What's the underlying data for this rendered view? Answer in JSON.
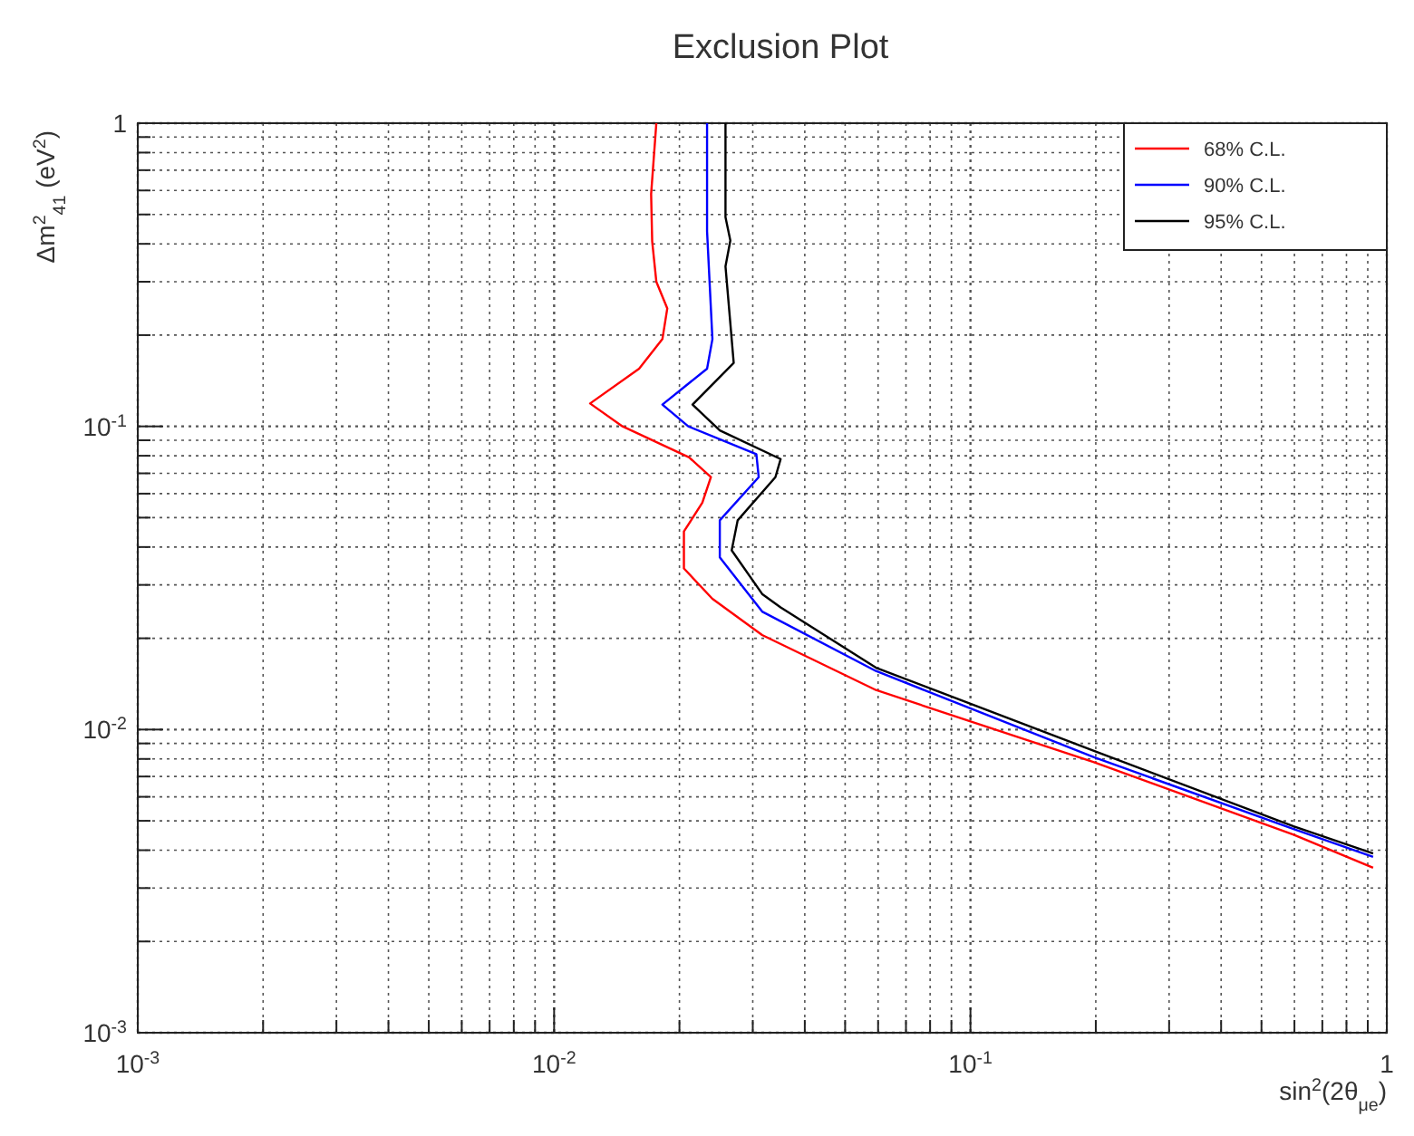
{
  "chart_data": {
    "type": "line",
    "title": "Exclusion Plot",
    "xlabel": "sin$^{2}$(2θ$_{μe}$)",
    "ylabel": "Δm$^{2}$$_{41}$ (eV$^{2}$)",
    "log": "xy",
    "grid": true,
    "legend": "top right",
    "marker": "none",
    "line_style": "solid",
    "xlim": [
      0.001,
      1
    ],
    "ylim": [
      0.001,
      1
    ],
    "xticks": [
      {
        "value": 0.001,
        "label": "10$^{-3}$"
      },
      {
        "value": 0.002,
        "label": null
      },
      {
        "value": 0.003,
        "label": null
      },
      {
        "value": 0.004,
        "label": null
      },
      {
        "value": 0.005,
        "label": null
      },
      {
        "value": 0.006,
        "label": null
      },
      {
        "value": 0.007,
        "label": null
      },
      {
        "value": 0.008,
        "label": null
      },
      {
        "value": 0.009,
        "label": null
      },
      {
        "value": 0.01,
        "label": "10$^{-2}$"
      },
      {
        "value": 0.02,
        "label": null
      },
      {
        "value": 0.03,
        "label": null
      },
      {
        "value": 0.04,
        "label": null
      },
      {
        "value": 0.05,
        "label": null
      },
      {
        "value": 0.06,
        "label": null
      },
      {
        "value": 0.07,
        "label": null
      },
      {
        "value": 0.08,
        "label": null
      },
      {
        "value": 0.09,
        "label": null
      },
      {
        "value": 0.1,
        "label": "10$^{-1}$"
      },
      {
        "value": 0.2,
        "label": null
      },
      {
        "value": 0.3,
        "label": null
      },
      {
        "value": 0.4,
        "label": null
      },
      {
        "value": 0.5,
        "label": null
      },
      {
        "value": 0.6,
        "label": null
      },
      {
        "value": 0.7,
        "label": null
      },
      {
        "value": 0.8,
        "label": null
      },
      {
        "value": 0.9,
        "label": null
      },
      {
        "value": 1,
        "label": "1"
      }
    ],
    "yticks": [
      {
        "value": 0.001,
        "label": "10$^{-3}$"
      },
      {
        "value": 0.002,
        "label": null
      },
      {
        "value": 0.003,
        "label": null
      },
      {
        "value": 0.004,
        "label": null
      },
      {
        "value": 0.005,
        "label": null
      },
      {
        "value": 0.006,
        "label": null
      },
      {
        "value": 0.007,
        "label": null
      },
      {
        "value": 0.008,
        "label": null
      },
      {
        "value": 0.009,
        "label": null
      },
      {
        "value": 0.01,
        "label": "10$^{-2}$"
      },
      {
        "value": 0.02,
        "label": null
      },
      {
        "value": 0.03,
        "label": null
      },
      {
        "value": 0.04,
        "label": null
      },
      {
        "value": 0.05,
        "label": null
      },
      {
        "value": 0.06,
        "label": null
      },
      {
        "value": 0.07,
        "label": null
      },
      {
        "value": 0.08,
        "label": null
      },
      {
        "value": 0.09,
        "label": null
      },
      {
        "value": 0.1,
        "label": "10$^{-1}$"
      },
      {
        "value": 0.2,
        "label": null
      },
      {
        "value": 0.3,
        "label": null
      },
      {
        "value": 0.4,
        "label": null
      },
      {
        "value": 0.5,
        "label": null
      },
      {
        "value": 0.6,
        "label": null
      },
      {
        "value": 0.7,
        "label": null
      },
      {
        "value": 0.8,
        "label": null
      },
      {
        "value": 0.9,
        "label": null
      },
      {
        "value": 1,
        "label": "1"
      }
    ],
    "series": [
      {
        "name": "68% C.L.",
        "color": "#ff0000",
        "x": [
          0.0176,
          0.0171,
          0.0172,
          0.0176,
          0.0187,
          0.0182,
          0.016,
          0.0122,
          0.0146,
          0.0211,
          0.0238,
          0.0227,
          0.0205,
          0.0205,
          0.024,
          0.0316,
          0.0593,
          0.198,
          0.597,
          0.927
        ],
        "values": [
          1,
          0.584,
          0.408,
          0.3,
          0.245,
          0.194,
          0.155,
          0.119,
          0.1,
          0.079,
          0.068,
          0.056,
          0.045,
          0.034,
          0.027,
          0.0205,
          0.0135,
          0.0078,
          0.0045,
          0.0035
        ]
      },
      {
        "name": "90% C.L.",
        "color": "#0000ff",
        "x": [
          0.0233,
          0.0233,
          0.024,
          0.0233,
          0.0182,
          0.021,
          0.0306,
          0.031,
          0.025,
          0.025,
          0.0293,
          0.0316,
          0.0593,
          0.198,
          0.597,
          0.927
        ],
        "values": [
          1,
          0.44,
          0.194,
          0.155,
          0.118,
          0.1,
          0.081,
          0.068,
          0.049,
          0.037,
          0.028,
          0.0245,
          0.0156,
          0.0081,
          0.0047,
          0.0038
        ]
      },
      {
        "name": "95% C.L.",
        "color": "#000000",
        "x": [
          0.0258,
          0.0258,
          0.0265,
          0.0258,
          0.027,
          0.0215,
          0.025,
          0.035,
          0.034,
          0.0276,
          0.0267,
          0.0316,
          0.035,
          0.0593,
          0.198,
          0.597,
          0.927
        ],
        "values": [
          1,
          0.49,
          0.41,
          0.337,
          0.162,
          0.118,
          0.097,
          0.078,
          0.068,
          0.049,
          0.039,
          0.028,
          0.0253,
          0.016,
          0.0085,
          0.0048,
          0.0039
        ]
      }
    ]
  }
}
